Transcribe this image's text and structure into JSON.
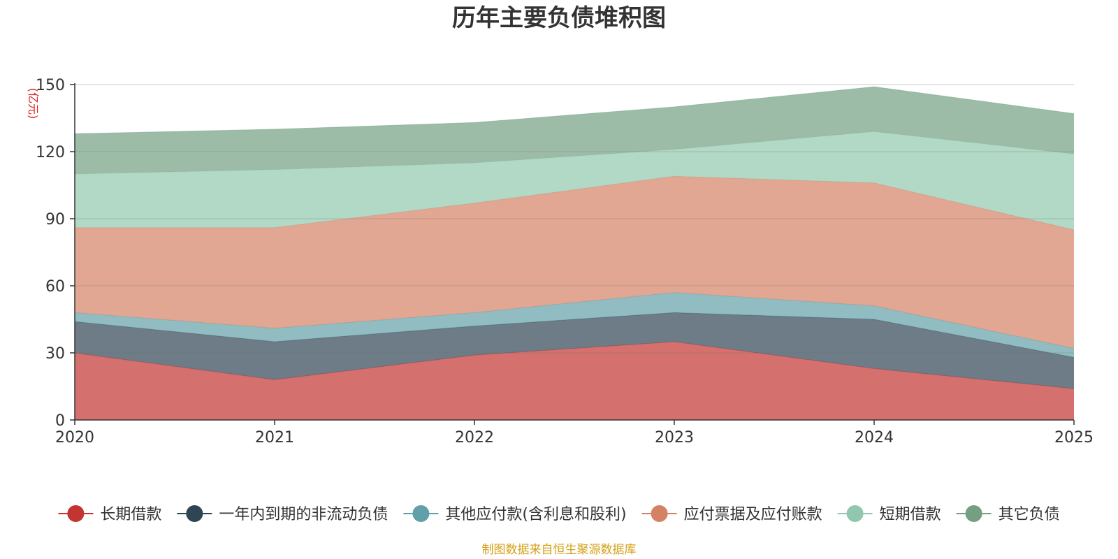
{
  "chart_data": {
    "type": "area",
    "stacked": true,
    "title": "历年主要负债堆积图",
    "unit": "(亿元)",
    "x": [
      "2020",
      "2021",
      "2022",
      "2023",
      "2024",
      "2025"
    ],
    "ylim": [
      0,
      150
    ],
    "yticks": [
      "0",
      "30",
      "60",
      "90",
      "120",
      "150"
    ],
    "grid": true,
    "legend_position": "bottom",
    "series": [
      {
        "name": "长期借款",
        "color": "#c23531",
        "values": [
          30,
          18,
          29,
          35,
          23,
          14
        ]
      },
      {
        "name": "一年内到期的非流动负债",
        "color": "#2f4554",
        "values": [
          14,
          17,
          13,
          13,
          22,
          14
        ]
      },
      {
        "name": "其他应付款(含利息和股利)",
        "color": "#61a0a8",
        "values": [
          4,
          6,
          6,
          9,
          6,
          4
        ]
      },
      {
        "name": "应付票据及应付账款",
        "color": "#d48265",
        "values": [
          38,
          45,
          49,
          52,
          55,
          53
        ]
      },
      {
        "name": "短期借款",
        "color": "#91c7ae",
        "values": [
          24,
          26,
          18,
          12,
          23,
          34
        ]
      },
      {
        "name": "其它负债",
        "color": "#749f83",
        "values": [
          18,
          18,
          18,
          19,
          20,
          18
        ]
      }
    ],
    "source": "制图数据来自恒生聚源数据库"
  }
}
